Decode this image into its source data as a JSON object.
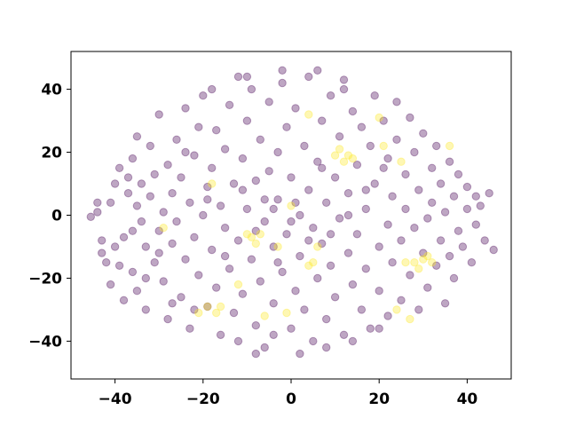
{
  "chart_data": {
    "type": "scatter",
    "title": "",
    "xlabel": "",
    "ylabel": "",
    "xlim": [
      -50,
      50
    ],
    "ylim": [
      -52,
      52
    ],
    "xticks": [
      -40,
      -20,
      0,
      20,
      40
    ],
    "yticks": [
      -40,
      -20,
      0,
      20,
      40
    ],
    "xtick_labels": [
      "−40",
      "−20",
      "0",
      "20",
      "40"
    ],
    "ytick_labels": [
      "−40",
      "−20",
      "0",
      "20",
      "40"
    ],
    "grid": false,
    "legend": "none",
    "marker_alpha": 0.35,
    "class_colors": {
      "0": "#440154",
      "1": "#fde725"
    },
    "series": [
      {
        "class": 0,
        "color": "#440154",
        "points": [
          [
            -45.5,
            -0.5
          ],
          [
            -44,
            1
          ],
          [
            -44,
            4
          ],
          [
            -43,
            -8
          ],
          [
            -43,
            -12
          ],
          [
            -42,
            -15
          ],
          [
            -41,
            -22
          ],
          [
            -41,
            4
          ],
          [
            -40,
            -10
          ],
          [
            -40,
            10
          ],
          [
            -39,
            -16
          ],
          [
            -39,
            15
          ],
          [
            -38,
            -7
          ],
          [
            -38,
            -27
          ],
          [
            -37,
            7
          ],
          [
            -36,
            -5
          ],
          [
            -36,
            18
          ],
          [
            -36,
            -18
          ],
          [
            -35,
            3
          ],
          [
            -35,
            -24
          ],
          [
            -35,
            25
          ],
          [
            -34,
            -2
          ],
          [
            -34,
            10
          ],
          [
            -33,
            -10
          ],
          [
            -33,
            -30
          ],
          [
            -32,
            6
          ],
          [
            -32,
            22
          ],
          [
            -31,
            -15
          ],
          [
            -31,
            13
          ],
          [
            -30,
            -5
          ],
          [
            -30,
            32
          ],
          [
            -29,
            1
          ],
          [
            -29,
            -21
          ],
          [
            -28,
            16
          ],
          [
            -28,
            -33
          ],
          [
            -27,
            -9
          ],
          [
            -27,
            7
          ],
          [
            -26,
            24
          ],
          [
            -26,
            -2
          ],
          [
            -25,
            -26
          ],
          [
            -25,
            12
          ],
          [
            -24,
            -14
          ],
          [
            -24,
            34
          ],
          [
            -23,
            4
          ],
          [
            -23,
            -36
          ],
          [
            -22,
            -7
          ],
          [
            -22,
            19
          ],
          [
            -21,
            28
          ],
          [
            -21,
            -19
          ],
          [
            -20,
            0
          ],
          [
            -20,
            38
          ],
          [
            -19,
            -29
          ],
          [
            -19,
            9
          ],
          [
            -18,
            15
          ],
          [
            -18,
            -11
          ],
          [
            -17,
            -23
          ],
          [
            -17,
            27
          ],
          [
            -16,
            3
          ],
          [
            -16,
            -38
          ],
          [
            -15,
            21
          ],
          [
            -15,
            -4
          ],
          [
            -14,
            35
          ],
          [
            -14,
            -17
          ],
          [
            -13,
            10
          ],
          [
            -13,
            -31
          ],
          [
            -12,
            44
          ],
          [
            -12,
            -8
          ],
          [
            -11,
            18
          ],
          [
            -11,
            -25
          ],
          [
            -10,
            2
          ],
          [
            -10,
            30
          ],
          [
            -9,
            -14
          ],
          [
            -9,
            40
          ],
          [
            -8,
            -35
          ],
          [
            -8,
            11
          ],
          [
            -7,
            -21
          ],
          [
            -7,
            24
          ],
          [
            -6,
            -2
          ],
          [
            -6,
            -42
          ],
          [
            -5,
            14
          ],
          [
            -5,
            36
          ],
          [
            -4,
            -10
          ],
          [
            -4,
            -28
          ],
          [
            -3,
            20
          ],
          [
            -3,
            5
          ],
          [
            -2,
            -18
          ],
          [
            -2,
            42
          ],
          [
            -1,
            -6
          ],
          [
            -1,
            28
          ],
          [
            0,
            -36
          ],
          [
            0,
            12
          ],
          [
            1,
            -24
          ],
          [
            1,
            34
          ],
          [
            2,
            0
          ],
          [
            2,
            -13
          ],
          [
            3,
            22
          ],
          [
            3,
            -30
          ],
          [
            4,
            8
          ],
          [
            4,
            44
          ],
          [
            5,
            -4
          ],
          [
            5,
            -40
          ],
          [
            6,
            17
          ],
          [
            6,
            -20
          ],
          [
            7,
            30
          ],
          [
            7,
            -9
          ],
          [
            8,
            4
          ],
          [
            8,
            -33
          ],
          [
            9,
            38
          ],
          [
            9,
            -16
          ],
          [
            10,
            12
          ],
          [
            10,
            -26
          ],
          [
            11,
            25
          ],
          [
            11,
            -1
          ],
          [
            12,
            43
          ],
          [
            12,
            -38
          ],
          [
            13,
            7
          ],
          [
            13,
            -12
          ],
          [
            14,
            33
          ],
          [
            14,
            -22
          ],
          [
            15,
            16
          ],
          [
            15,
            -6
          ],
          [
            16,
            -30
          ],
          [
            16,
            28
          ],
          [
            17,
            2
          ],
          [
            17,
            -17
          ],
          [
            18,
            22
          ],
          [
            18,
            -36
          ],
          [
            19,
            10
          ],
          [
            19,
            38
          ],
          [
            20,
            -10
          ],
          [
            20,
            -24
          ],
          [
            21,
            15
          ],
          [
            21,
            30
          ],
          [
            22,
            -3
          ],
          [
            22,
            -32
          ],
          [
            23,
            6
          ],
          [
            23,
            -15
          ],
          [
            24,
            24
          ],
          [
            24,
            36
          ],
          [
            25,
            -8
          ],
          [
            25,
            -27
          ],
          [
            26,
            13
          ],
          [
            26,
            2
          ],
          [
            27,
            -19
          ],
          [
            27,
            31
          ],
          [
            28,
            -4
          ],
          [
            28,
            20
          ],
          [
            29,
            -30
          ],
          [
            29,
            8
          ],
          [
            30,
            -12
          ],
          [
            30,
            26
          ],
          [
            31,
            -1
          ],
          [
            31,
            -23
          ],
          [
            32,
            15
          ],
          [
            32,
            4
          ],
          [
            33,
            -16
          ],
          [
            33,
            22
          ],
          [
            34,
            -8
          ],
          [
            34,
            10
          ],
          [
            35,
            -28
          ],
          [
            35,
            1
          ],
          [
            36,
            17
          ],
          [
            36,
            -13
          ],
          [
            37,
            6
          ],
          [
            37,
            -20
          ],
          [
            38,
            -5
          ],
          [
            38,
            13
          ],
          [
            39,
            -10
          ],
          [
            40,
            2
          ],
          [
            40,
            9
          ],
          [
            41,
            -15
          ],
          [
            42,
            -3
          ],
          [
            42,
            6
          ],
          [
            43,
            3
          ],
          [
            44,
            -8
          ],
          [
            45,
            7
          ],
          [
            46,
            -11
          ],
          [
            -30,
            -12
          ],
          [
            -27,
            -28
          ],
          [
            -22,
            -30
          ],
          [
            -12,
            -40
          ],
          [
            -8,
            -44
          ],
          [
            -4,
            -38
          ],
          [
            2,
            -44
          ],
          [
            8,
            -42
          ],
          [
            14,
            -40
          ],
          [
            -18,
            40
          ],
          [
            -10,
            44
          ],
          [
            -2,
            46
          ],
          [
            6,
            46
          ],
          [
            12,
            40
          ],
          [
            20,
            -36
          ],
          [
            -33,
            -20
          ],
          [
            -37,
            12
          ],
          [
            -6,
            5
          ],
          [
            0,
            -2
          ],
          [
            4,
            -8
          ],
          [
            -3,
            -15
          ],
          [
            7,
            15
          ],
          [
            -11,
            8
          ],
          [
            9,
            -6
          ],
          [
            -15,
            -13
          ],
          [
            13,
            0
          ],
          [
            -19,
            5
          ],
          [
            17,
            8
          ],
          [
            -24,
            20
          ],
          [
            22,
            18
          ],
          [
            -8,
            -5
          ],
          [
            1,
            4
          ],
          [
            -4,
            2
          ]
        ]
      },
      {
        "class": 1,
        "color": "#fde725",
        "points": [
          [
            -29,
            -4
          ],
          [
            -18,
            10
          ],
          [
            -21,
            -31
          ],
          [
            -19,
            -29
          ],
          [
            -17,
            -31
          ],
          [
            -16,
            -29
          ],
          [
            -12,
            -22
          ],
          [
            -10,
            -6
          ],
          [
            -9,
            -7
          ],
          [
            -7,
            -6
          ],
          [
            -8,
            -9
          ],
          [
            -6,
            -32
          ],
          [
            0,
            3
          ],
          [
            -1,
            -31
          ],
          [
            4,
            -16
          ],
          [
            5,
            -15
          ],
          [
            6,
            -10
          ],
          [
            4,
            32
          ],
          [
            -3,
            -10
          ],
          [
            10,
            19
          ],
          [
            11,
            21
          ],
          [
            12,
            17
          ],
          [
            13,
            19
          ],
          [
            14,
            18
          ],
          [
            20,
            31
          ],
          [
            21,
            22
          ],
          [
            24,
            -30
          ],
          [
            25,
            17
          ],
          [
            26,
            -15
          ],
          [
            28,
            -15
          ],
          [
            29,
            -17
          ],
          [
            30,
            -14
          ],
          [
            31,
            -13
          ],
          [
            32,
            -15
          ],
          [
            27,
            -33
          ],
          [
            36,
            22
          ]
        ]
      }
    ]
  }
}
